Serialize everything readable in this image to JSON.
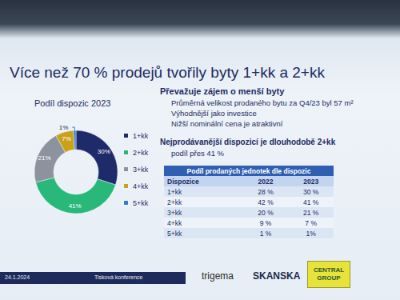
{
  "slide": {
    "title": "Více než 70 % prodejů tvořily byty 1+kk a 2+kk",
    "points": {
      "heading": "Převažuje zájem o menší byty",
      "items": [
        "Průměrná velikost prodaného bytu za Q4/23 byl 57 m²",
        "Výhodnější jako investice",
        "Nižší nominální cena je atraktivní"
      ]
    },
    "highlight": {
      "heading": "Nejprodávanější dispozicí je dlouhodobě 2+kk",
      "text": "podíl přes 41 %"
    }
  },
  "chart_data": {
    "type": "donut",
    "title": "Podíl dispozic 2023",
    "categories": [
      "1+kk",
      "2+kk",
      "3+kk",
      "4+kk",
      "5+kk"
    ],
    "values": [
      30,
      41,
      21,
      7,
      1
    ],
    "value_labels": [
      "30%",
      "41%",
      "21%",
      "7%",
      "1%"
    ],
    "colors": [
      "#1f2a6b",
      "#27b87a",
      "#8c929e",
      "#c9a21a",
      "#3a7bd5"
    ],
    "data_labels": true,
    "legend": "right"
  },
  "table": {
    "title": "Podíl prodaných jednotek dle dispozic",
    "header": [
      "Dispozice",
      "2022",
      "2023"
    ],
    "rows": [
      [
        "1+kk",
        "28 %",
        "30 %"
      ],
      [
        "2+kk",
        "42 %",
        "41 %"
      ],
      [
        "3+kk",
        "20 %",
        "21 %"
      ],
      [
        "4+kk",
        "9 %",
        "7 %"
      ],
      [
        "5+kk",
        "1 %",
        "1%"
      ]
    ]
  },
  "footer": {
    "date": "24.1.2024",
    "event": "Tisková konference",
    "logos": [
      "trigema",
      "SKANSKA",
      "CENTRAL GROUP"
    ]
  }
}
